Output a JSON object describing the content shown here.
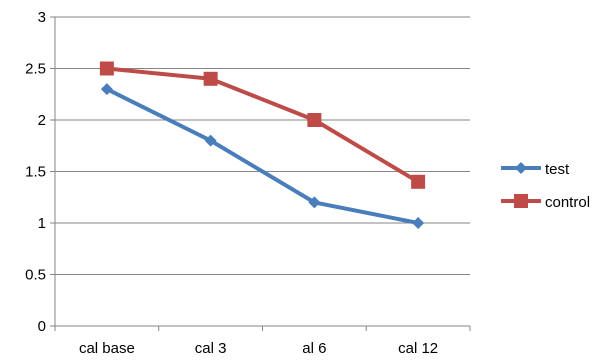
{
  "chart_data": {
    "type": "line",
    "categories": [
      "cal base",
      "cal 3",
      "al 6",
      "cal 12"
    ],
    "series": [
      {
        "name": "test",
        "values": [
          2.3,
          1.8,
          1.2,
          1.0
        ],
        "color": "#4a7ebb",
        "marker": "diamond"
      },
      {
        "name": "control",
        "values": [
          2.5,
          2.4,
          2.0,
          1.4
        ],
        "color": "#be4b48",
        "marker": "square"
      }
    ],
    "ylim": [
      0,
      3
    ],
    "yticks": [
      "0",
      "0.5",
      "1",
      "1.5",
      "2",
      "2.5",
      "3"
    ],
    "grid": true,
    "legend": "right"
  }
}
